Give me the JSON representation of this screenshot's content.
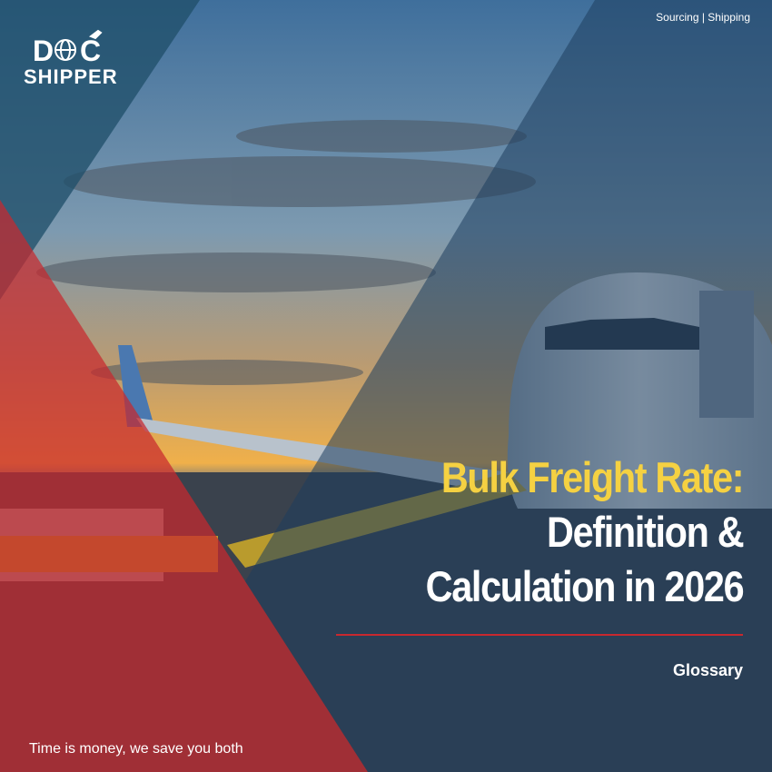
{
  "logo": {
    "letters": [
      "D",
      "C"
    ],
    "word": "SHIPPER"
  },
  "nav": "Sourcing | Shipping",
  "title": {
    "lines": [
      "Bulk Freight Rate:",
      "Definition &",
      "Calculation in 2026"
    ]
  },
  "category": "Glossary",
  "tagline": "Time is money, we save you both"
}
